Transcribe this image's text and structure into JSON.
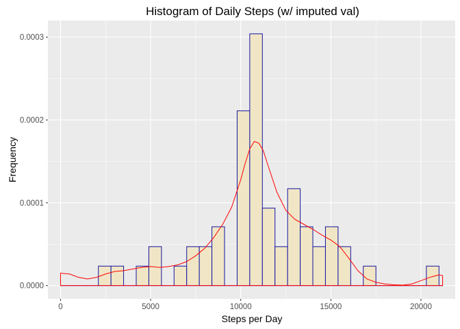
{
  "chart_data": {
    "type": "histogram",
    "title": "Histogram of Daily Steps (w/ imputed val)",
    "xlabel": "Steps per Day",
    "ylabel": "Frequency",
    "xlim": [
      -700,
      21900
    ],
    "ylim": [
      -1.6e-05,
      0.00032
    ],
    "x_ticks": [
      0,
      5000,
      10000,
      15000,
      20000
    ],
    "x_tick_labels": [
      "0",
      "5000",
      "10000",
      "15000",
      "20000"
    ],
    "y_ticks": [
      0,
      0.0001,
      0.0002,
      0.0003
    ],
    "y_tick_labels": [
      "0.0000",
      "0.0001",
      "0.0002",
      "0.0003"
    ],
    "bin_width": 700,
    "bins": [
      {
        "x0": 0,
        "x1": 700,
        "density": 0
      },
      {
        "x0": 700,
        "x1": 1400,
        "density": 0
      },
      {
        "x0": 1400,
        "x1": 2100,
        "density": 0
      },
      {
        "x0": 2100,
        "x1": 2800,
        "density": 2.35e-05
      },
      {
        "x0": 2800,
        "x1": 3500,
        "density": 2.35e-05
      },
      {
        "x0": 3500,
        "x1": 4200,
        "density": 0
      },
      {
        "x0": 4200,
        "x1": 4900,
        "density": 2.35e-05
      },
      {
        "x0": 4900,
        "x1": 5600,
        "density": 4.7e-05
      },
      {
        "x0": 5600,
        "x1": 6300,
        "density": 0
      },
      {
        "x0": 6300,
        "x1": 7000,
        "density": 2.35e-05
      },
      {
        "x0": 7000,
        "x1": 7700,
        "density": 4.7e-05
      },
      {
        "x0": 7700,
        "x1": 8400,
        "density": 4.7e-05
      },
      {
        "x0": 8400,
        "x1": 9100,
        "density": 7.1e-05
      },
      {
        "x0": 9100,
        "x1": 9800,
        "density": 0
      },
      {
        "x0": 9800,
        "x1": 10500,
        "density": 0.000211
      },
      {
        "x0": 10500,
        "x1": 11200,
        "density": 0.000304
      },
      {
        "x0": 11200,
        "x1": 11900,
        "density": 9.35e-05
      },
      {
        "x0": 11900,
        "x1": 12600,
        "density": 4.7e-05
      },
      {
        "x0": 12600,
        "x1": 13300,
        "density": 0.000117
      },
      {
        "x0": 13300,
        "x1": 14000,
        "density": 7.1e-05
      },
      {
        "x0": 14000,
        "x1": 14700,
        "density": 4.7e-05
      },
      {
        "x0": 14700,
        "x1": 15400,
        "density": 7.1e-05
      },
      {
        "x0": 15400,
        "x1": 16100,
        "density": 4.7e-05
      },
      {
        "x0": 16100,
        "x1": 16800,
        "density": 0
      },
      {
        "x0": 16800,
        "x1": 17500,
        "density": 2.35e-05
      },
      {
        "x0": 17500,
        "x1": 18200,
        "density": 0
      },
      {
        "x0": 18200,
        "x1": 18900,
        "density": 0
      },
      {
        "x0": 18900,
        "x1": 19600,
        "density": 0
      },
      {
        "x0": 19600,
        "x1": 20300,
        "density": 0
      },
      {
        "x0": 20300,
        "x1": 21000,
        "density": 2.35e-05
      },
      {
        "x0": 21000,
        "x1": 21200,
        "density": 0
      }
    ],
    "density_curve": {
      "x": [
        0,
        500,
        1000,
        1500,
        2000,
        2500,
        3000,
        3500,
        4000,
        4500,
        5000,
        5500,
        6000,
        6500,
        7000,
        7500,
        8000,
        8500,
        9000,
        9500,
        10000,
        10250,
        10500,
        10750,
        11000,
        11250,
        11500,
        12000,
        12500,
        13000,
        13500,
        14000,
        14500,
        15000,
        15500,
        16000,
        16500,
        17000,
        17500,
        18000,
        18500,
        19000,
        19500,
        20000,
        20500,
        21000,
        21200
      ],
      "y": [
        1.5e-05,
        1.4e-05,
        1e-05,
        8e-06,
        1e-05,
        1.4e-05,
        1.7e-05,
        1.8e-05,
        2e-05,
        2.2e-05,
        2.3e-05,
        2.2e-05,
        2.3e-05,
        2.5e-05,
        2.9e-05,
        3.6e-05,
        4.5e-05,
        5.8e-05,
        7.4e-05,
        9.5e-05,
        0.000128,
        0.000148,
        0.000165,
        0.000174,
        0.000172,
        0.000163,
        0.000146,
        0.000113,
        9.1e-05,
        8e-05,
        7.4e-05,
        6.8e-05,
        6.1e-05,
        5.5e-05,
        4.7e-05,
        3.3e-05,
        1.8e-05,
        8e-06,
        4e-06,
        2e-06,
        1e-06,
        6e-07,
        2e-06,
        6e-06,
        1e-05,
        1.3e-05,
        1.2e-05
      ]
    },
    "grid": true,
    "legend": "none",
    "colors": {
      "panel_background": "#EBEBEB",
      "grid_major": "#FFFFFF",
      "bar_fill": "#F0E6C6",
      "bar_outline": "#1414A0",
      "density_line": "#FF0000",
      "tick_label": "#4D4D4D",
      "text": "#000000"
    }
  }
}
